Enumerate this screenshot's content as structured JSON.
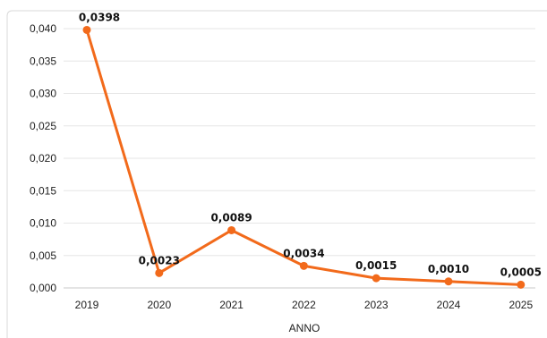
{
  "chart_data": {
    "type": "line",
    "x": [
      "2019",
      "2020",
      "2021",
      "2022",
      "2023",
      "2024",
      "2025"
    ],
    "series": [
      {
        "values": [
          0.0398,
          0.0023,
          0.0089,
          0.0034,
          0.0015,
          0.001,
          0.0005
        ],
        "labels": [
          "0,0398",
          "0,0023",
          "0,0089",
          "0,0034",
          "0,0015",
          "0,0010",
          "0,0005"
        ],
        "color": "#f26a1b"
      }
    ],
    "xlabel": "ANNO",
    "ylabel": "",
    "ylim": [
      0,
      0.04
    ],
    "yticks": [
      0,
      0.005,
      0.01,
      0.015,
      0.02,
      0.025,
      0.03,
      0.035,
      0.04
    ],
    "ytick_labels": [
      "0,000",
      "0,005",
      "0,010",
      "0,015",
      "0,020",
      "0,025",
      "0,030",
      "0,035",
      "0,040"
    ],
    "grid": true,
    "legend": "none"
  },
  "colors": {
    "line": "#f26a1b",
    "grid": "#e6e6e6",
    "frame": "#d9d9d9"
  }
}
